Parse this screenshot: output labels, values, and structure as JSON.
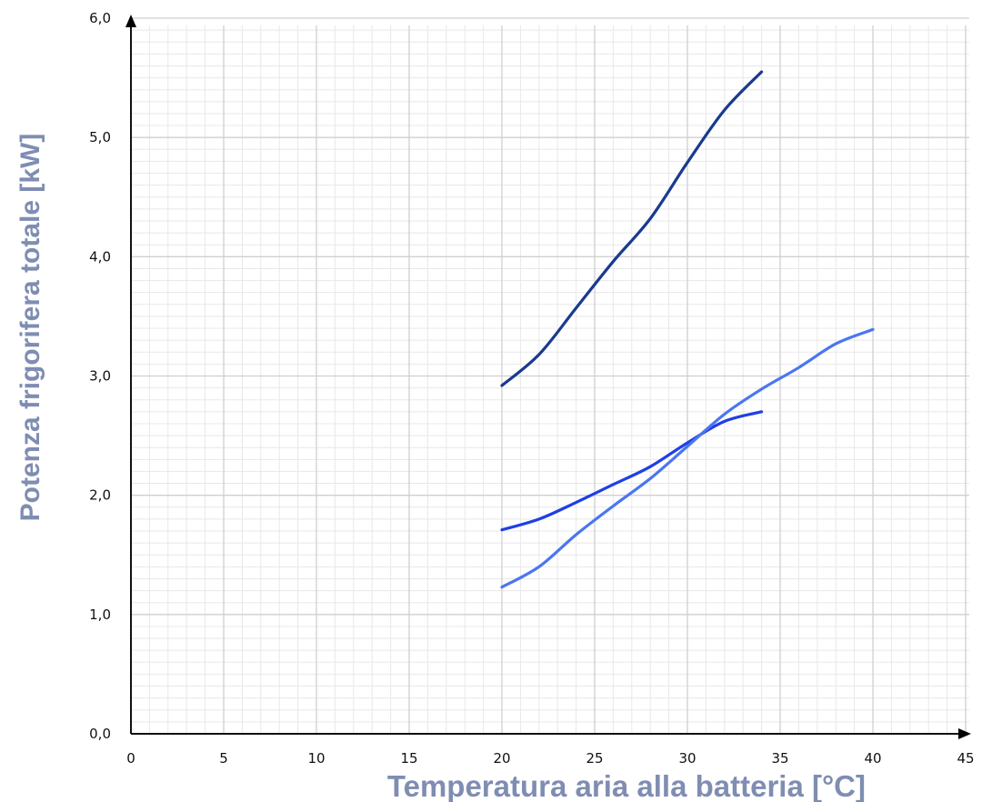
{
  "chart_data": {
    "type": "line",
    "title": "",
    "xlabel": "Temperatura aria alla batteria  [°C]",
    "ylabel": "Potenza frigorifera totale  [kW]",
    "xlim": [
      0,
      45
    ],
    "ylim": [
      0,
      6
    ],
    "grid": true,
    "x_ticks": [
      "0",
      "5",
      "10",
      "15",
      "20",
      "25",
      "30",
      "35",
      "40",
      "45"
    ],
    "y_ticks": [
      "0,0",
      "1,0",
      "2,0",
      "3,0",
      "4,0",
      "5,0",
      "6,0"
    ],
    "series": [
      {
        "color": "#1a3a8f",
        "x": [
          20,
          22,
          24,
          26,
          28,
          30,
          32,
          34
        ],
        "y": [
          2.92,
          3.18,
          3.57,
          3.96,
          4.32,
          4.79,
          5.23,
          5.55
        ]
      },
      {
        "color": "#1e3fe6",
        "x": [
          20,
          22,
          24,
          26,
          28,
          30,
          32,
          34
        ],
        "y": [
          1.71,
          1.8,
          1.94,
          2.09,
          2.24,
          2.44,
          2.62,
          2.7
        ]
      },
      {
        "color": "#4a76f0",
        "x": [
          20,
          22,
          24,
          26,
          28,
          30,
          32,
          34,
          36,
          38,
          40
        ],
        "y": [
          1.23,
          1.4,
          1.67,
          1.91,
          2.14,
          2.41,
          2.68,
          2.89,
          3.07,
          3.27,
          3.39
        ]
      }
    ]
  }
}
